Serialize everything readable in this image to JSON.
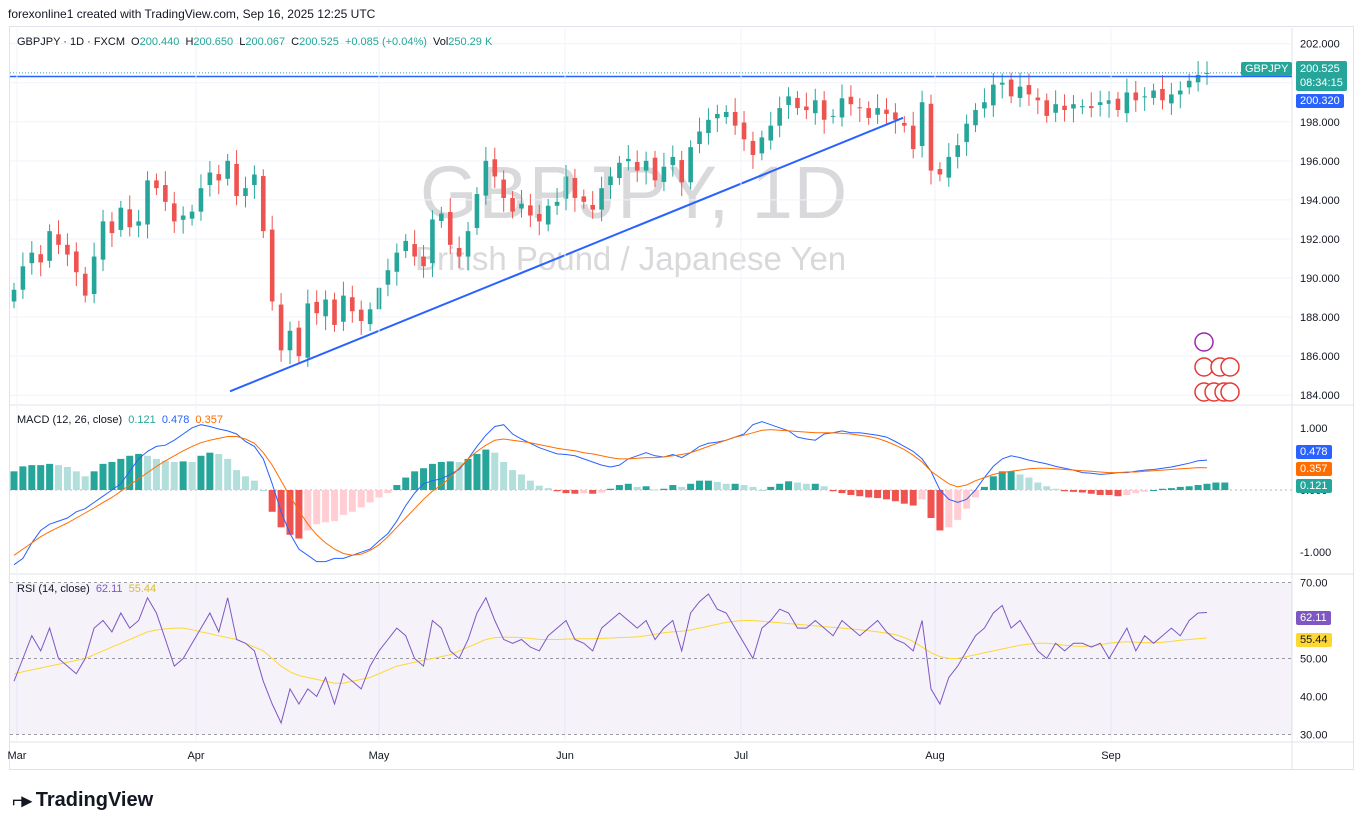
{
  "header": {
    "attribution": "forexonline1 created with TradingView.com, Sep 16, 2025 12:25 UTC"
  },
  "legend": {
    "symbol": "GBPJPY · 1D · FXCM",
    "o_label": "O",
    "o_value": "200.440",
    "h_label": "H",
    "h_value": "200.650",
    "l_label": "L",
    "l_value": "200.067",
    "c_label": "C",
    "c_value": "200.525",
    "change": "+0.085 (+0.04%)",
    "vol_label": "Vol",
    "vol_value": "250.29 K"
  },
  "watermark": {
    "ticker": "GBPJPY, 1D",
    "name": "British Pound / Japanese Yen"
  },
  "price_tags": {
    "symbol": "GBPJPY",
    "last": "200.525",
    "countdown": "08:34:15",
    "line": "200.320"
  },
  "macd_legend": {
    "title": "MACD (12, 26, close)",
    "hist": "0.121",
    "macd": "0.478",
    "signal": "0.357"
  },
  "rsi_legend": {
    "title": "RSI (14, close)",
    "rsi": "62.11",
    "ma": "55.44"
  },
  "footer": {
    "brand": "TradingView"
  },
  "colors": {
    "up": "#26a69a",
    "down": "#ef5350",
    "up_light": "#b2dfdb",
    "down_light": "#ffcdd2",
    "trend": "#2962ff",
    "macd": "#2962ff",
    "signal": "#ff6d00",
    "rsi": "#7e57c2",
    "rsi_ma": "#fdd835",
    "tag_teal": "#26a69a",
    "tag_blue": "#2962ff",
    "tag_orange": "#ff6d00",
    "tag_purple": "#7e57c2",
    "tag_yellow": "#fdd835"
  },
  "chart_data": [
    {
      "type": "candlestick",
      "x_labels": [
        "Mar",
        "Apr",
        "May",
        "Jun",
        "Jul",
        "Aug",
        "Sep"
      ],
      "y_ticks": [
        "202.000",
        "200.000",
        "198.000",
        "196.000",
        "194.000",
        "192.000",
        "190.000",
        "188.000",
        "186.000",
        "184.000"
      ],
      "ylim": [
        183.5,
        202.8
      ],
      "close": [
        189.4,
        190.6,
        191.3,
        190.8,
        192.4,
        191.7,
        191.2,
        190.3,
        189.1,
        191.1,
        192.9,
        192.3,
        193.6,
        192.6,
        192.9,
        195.0,
        194.6,
        193.9,
        192.9,
        193.2,
        193.4,
        194.6,
        195.4,
        195.0,
        196.0,
        194.2,
        194.6,
        195.3,
        192.4,
        188.8,
        186.3,
        187.3,
        186.0,
        188.7,
        188.2,
        188.9,
        187.6,
        189.1,
        188.3,
        187.8,
        188.4,
        189.5,
        190.4,
        191.3,
        191.9,
        191.1,
        190.6,
        193.0,
        193.3,
        191.7,
        191.1,
        192.4,
        194.3,
        196.0,
        195.2,
        194.1,
        193.4,
        193.8,
        193.2,
        192.9,
        193.7,
        193.9,
        195.2,
        194.1,
        193.9,
        193.5,
        194.6,
        195.2,
        195.9,
        196.1,
        195.5,
        196.0,
        195.0,
        195.7,
        196.2,
        194.9,
        196.7,
        197.5,
        198.1,
        198.4,
        198.5,
        197.8,
        197.1,
        196.3,
        197.2,
        197.8,
        198.7,
        199.3,
        198.7,
        198.6,
        199.1,
        198.1,
        198.3,
        199.2,
        198.9,
        198.7,
        198.2,
        198.7,
        198.4,
        198.1,
        197.8,
        196.6,
        199.0,
        195.5,
        195.3,
        196.2,
        196.8,
        197.9,
        198.6,
        199.0,
        199.9,
        200.0,
        199.3,
        199.8,
        199.4,
        199.1,
        198.3,
        198.9,
        198.6,
        198.9,
        198.8,
        198.7,
        199.0,
        199.1,
        198.6,
        199.5,
        199.1,
        199.3,
        199.6,
        199.1,
        199.4,
        199.6,
        200.1,
        200.4,
        200.5
      ],
      "trendline": {
        "from": [
          "Apr 8",
          184.2
        ],
        "to": [
          "Jul 29",
          198.2
        ]
      },
      "horizontal_line": 200.32
    },
    {
      "type": "macd",
      "params": "12, 26, close",
      "ylim": [
        -1.35,
        1.35
      ],
      "y_ticks": [
        "1.000",
        "0.000",
        "-1.000"
      ],
      "histogram": [
        0.3,
        0.38,
        0.4,
        0.4,
        0.42,
        0.4,
        0.37,
        0.3,
        0.22,
        0.3,
        0.42,
        0.45,
        0.5,
        0.55,
        0.58,
        0.55,
        0.5,
        0.47,
        0.45,
        0.46,
        0.45,
        0.55,
        0.6,
        0.58,
        0.5,
        0.32,
        0.22,
        0.15,
        0.0,
        -0.35,
        -0.6,
        -0.72,
        -0.78,
        -0.65,
        -0.55,
        -0.52,
        -0.5,
        -0.4,
        -0.35,
        -0.28,
        -0.2,
        -0.12,
        -0.05,
        0.08,
        0.2,
        0.3,
        0.35,
        0.42,
        0.45,
        0.46,
        0.45,
        0.5,
        0.58,
        0.65,
        0.6,
        0.45,
        0.32,
        0.25,
        0.15,
        0.07,
        0.03,
        -0.02,
        -0.05,
        -0.06,
        -0.05,
        -0.06,
        -0.04,
        0.02,
        0.08,
        0.1,
        0.05,
        0.06,
        0.01,
        0.02,
        0.08,
        0.05,
        0.1,
        0.15,
        0.15,
        0.13,
        0.1,
        0.1,
        0.08,
        0.05,
        0.0,
        0.05,
        0.1,
        0.14,
        0.12,
        0.1,
        0.1,
        0.06,
        -0.02,
        -0.05,
        -0.08,
        -0.1,
        -0.12,
        -0.13,
        -0.15,
        -0.18,
        -0.22,
        -0.25,
        -0.15,
        -0.45,
        -0.65,
        -0.6,
        -0.48,
        -0.3,
        -0.12,
        0.05,
        0.22,
        0.3,
        0.3,
        0.25,
        0.2,
        0.12,
        0.06,
        0.02,
        -0.02,
        -0.03,
        -0.04,
        -0.06,
        -0.08,
        -0.08,
        -0.1,
        -0.08,
        -0.05,
        -0.03,
        0.0,
        0.02,
        0.03,
        0.05,
        0.06,
        0.08,
        0.1,
        0.12,
        0.12
      ],
      "macd_line": [
        -1.2,
        -1.1,
        -0.85,
        -0.65,
        -0.55,
        -0.5,
        -0.45,
        -0.35,
        -0.3,
        -0.2,
        -0.1,
        0.0,
        0.1,
        0.3,
        0.5,
        0.62,
        0.7,
        0.72,
        0.8,
        0.9,
        1.0,
        1.05,
        1.02,
        0.98,
        0.95,
        0.9,
        0.78,
        0.7,
        0.5,
        0.1,
        -0.35,
        -0.7,
        -0.95,
        -1.05,
        -1.15,
        -1.15,
        -1.1,
        -1.1,
        -1.05,
        -1.0,
        -0.95,
        -0.82,
        -0.7,
        -0.5,
        -0.25,
        -0.05,
        0.1,
        0.15,
        0.18,
        0.25,
        0.33,
        0.5,
        0.7,
        0.88,
        1.02,
        1.05,
        0.9,
        0.82,
        0.75,
        0.68,
        0.63,
        0.58,
        0.57,
        0.55,
        0.5,
        0.45,
        0.4,
        0.37,
        0.4,
        0.5,
        0.55,
        0.6,
        0.55,
        0.53,
        0.57,
        0.52,
        0.6,
        0.7,
        0.75,
        0.77,
        0.8,
        0.85,
        0.9,
        1.05,
        1.1,
        1.05,
        1.0,
        0.95,
        0.85,
        0.82,
        0.8,
        0.9,
        0.92,
        0.95,
        0.92,
        0.92,
        0.9,
        0.88,
        0.85,
        0.78,
        0.7,
        0.62,
        0.5,
        0.3,
        0.0,
        -0.15,
        -0.2,
        -0.15,
        0.0,
        0.2,
        0.38,
        0.5,
        0.55,
        0.52,
        0.48,
        0.45,
        0.42,
        0.38,
        0.35,
        0.32,
        0.28,
        0.27,
        0.25,
        0.26,
        0.28,
        0.28,
        0.3,
        0.32,
        0.33,
        0.35,
        0.37,
        0.4,
        0.43,
        0.47,
        0.48
      ],
      "signal_line": [
        -1.05,
        -0.95,
        -0.85,
        -0.75,
        -0.67,
        -0.6,
        -0.53,
        -0.45,
        -0.37,
        -0.29,
        -0.2,
        -0.12,
        -0.02,
        0.08,
        0.18,
        0.28,
        0.38,
        0.47,
        0.55,
        0.63,
        0.7,
        0.76,
        0.8,
        0.83,
        0.86,
        0.86,
        0.82,
        0.75,
        0.6,
        0.4,
        0.15,
        -0.1,
        -0.33,
        -0.55,
        -0.72,
        -0.85,
        -0.95,
        -1.02,
        -1.05,
        -1.03,
        -0.97,
        -0.88,
        -0.75,
        -0.6,
        -0.45,
        -0.3,
        -0.15,
        -0.02,
        0.08,
        0.2,
        0.35,
        0.5,
        0.62,
        0.72,
        0.8,
        0.82,
        0.8,
        0.78,
        0.76,
        0.73,
        0.7,
        0.67,
        0.65,
        0.63,
        0.6,
        0.58,
        0.55,
        0.52,
        0.5,
        0.5,
        0.51,
        0.52,
        0.52,
        0.53,
        0.55,
        0.57,
        0.6,
        0.65,
        0.7,
        0.75,
        0.8,
        0.85,
        0.88,
        0.92,
        0.96,
        0.97,
        0.96,
        0.95,
        0.94,
        0.93,
        0.92,
        0.92,
        0.92,
        0.91,
        0.9,
        0.88,
        0.86,
        0.83,
        0.78,
        0.72,
        0.65,
        0.56,
        0.45,
        0.3,
        0.2,
        0.1,
        0.05,
        0.08,
        0.15,
        0.2,
        0.25,
        0.28,
        0.3,
        0.32,
        0.34,
        0.35,
        0.35,
        0.34,
        0.33,
        0.32,
        0.31,
        0.3,
        0.29,
        0.28,
        0.28,
        0.29,
        0.29,
        0.3,
        0.31,
        0.32,
        0.33,
        0.34,
        0.35,
        0.36,
        0.357
      ]
    },
    {
      "type": "rsi",
      "params": "14, close",
      "ylim": [
        28,
        72
      ],
      "y_ticks": [
        "70.00",
        "60.00",
        "50.00",
        "40.00",
        "30.00"
      ],
      "bands": [
        70,
        50,
        30
      ],
      "rsi_line": [
        44,
        50,
        56,
        52,
        58,
        50,
        48,
        46,
        50,
        58,
        60,
        57,
        62,
        58,
        60,
        66,
        62,
        55,
        48,
        50,
        54,
        58,
        62,
        57,
        66,
        55,
        54,
        52,
        44,
        38,
        33,
        42,
        38,
        42,
        40,
        45,
        38,
        46,
        44,
        42,
        48,
        52,
        55,
        58,
        56,
        50,
        48,
        60,
        58,
        52,
        50,
        55,
        62,
        66,
        60,
        55,
        54,
        55,
        53,
        52,
        56,
        58,
        60,
        55,
        54,
        52,
        58,
        60,
        62,
        60,
        58,
        60,
        55,
        58,
        60,
        52,
        62,
        65,
        67,
        63,
        62,
        58,
        54,
        50,
        58,
        60,
        63,
        62,
        58,
        58,
        60,
        58,
        56,
        60,
        58,
        56,
        58,
        60,
        57,
        55,
        54,
        52,
        60,
        42,
        38,
        45,
        48,
        52,
        56,
        58,
        62,
        64,
        58,
        60,
        56,
        52,
        50,
        54,
        52,
        54,
        54,
        53,
        54,
        50,
        54,
        58,
        52,
        56,
        54,
        56,
        58,
        56,
        60,
        62,
        62.11
      ],
      "rsi_ma": [
        46,
        46.5,
        47,
        47.5,
        48,
        48.5,
        49,
        49.5,
        50,
        51,
        52,
        53,
        54,
        55,
        56,
        57,
        57.5,
        57.8,
        58,
        58,
        57.6,
        57,
        56.5,
        56,
        55.5,
        55,
        54,
        53,
        52,
        50,
        48,
        46.5,
        45.5,
        45,
        44.5,
        44,
        43.5,
        43.5,
        44,
        44.5,
        45,
        46,
        47,
        48,
        48.5,
        49,
        49.5,
        50,
        50.5,
        51,
        52,
        53,
        54,
        55,
        55.5,
        55.6,
        55.6,
        55.5,
        55.3,
        55,
        55,
        55,
        55.1,
        55.2,
        55.2,
        55.2,
        55.3,
        55.4,
        55.5,
        55.6,
        55.7,
        56,
        56.4,
        56.8,
        57,
        57.2,
        57.5,
        58,
        58.5,
        59,
        59.5,
        59.8,
        60,
        60,
        59.8,
        59.6,
        59.4,
        59.2,
        59,
        58.8,
        58.6,
        58.4,
        58.2,
        58,
        57.8,
        57.6,
        57.3,
        57,
        56.7,
        56.3,
        55.5,
        54.5,
        53,
        51.5,
        50.5,
        50,
        50,
        50.5,
        51,
        51.5,
        52,
        52.5,
        53,
        53.5,
        53.8,
        54,
        54,
        53.8,
        53.5,
        53.3,
        53.2,
        53.3,
        53.6,
        54,
        54.3,
        54.4,
        54.3,
        54.2,
        54.2,
        54.3,
        54.5,
        54.8,
        55,
        55.2,
        55.44
      ]
    }
  ]
}
